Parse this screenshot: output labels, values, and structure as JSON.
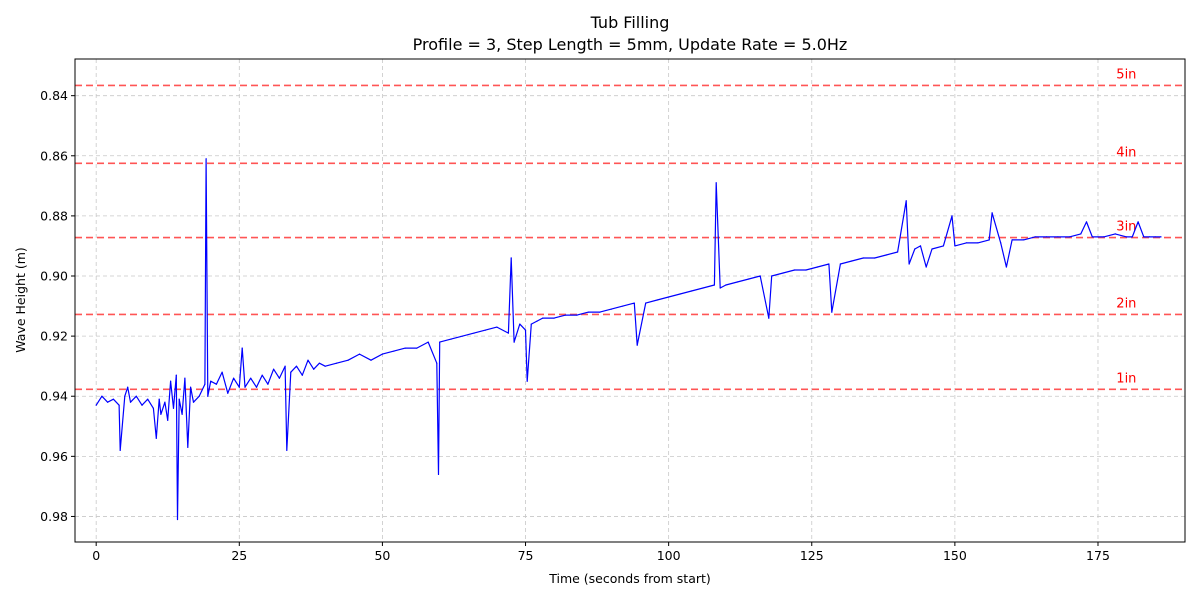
{
  "chart_data": {
    "type": "line",
    "title": "Tub Filling",
    "subtitle": "Profile = 3, Step Length = 5mm, Update Rate = 5.0Hz",
    "xlabel": "Time (seconds from start)",
    "ylabel": "Wave Height (m)",
    "xlim": [
      -3.7,
      190.2
    ],
    "ylim": [
      0.9885,
      0.8278
    ],
    "y_inverted": true,
    "xticks": [
      0,
      25,
      50,
      75,
      100,
      125,
      150,
      175
    ],
    "yticks": [
      0.84,
      0.86,
      0.88,
      0.9,
      0.92,
      0.94,
      0.96,
      0.98
    ],
    "ytick_labels": [
      "0.84",
      "0.86",
      "0.88",
      "0.90",
      "0.92",
      "0.94",
      "0.96",
      "0.98"
    ],
    "grid": true,
    "series_color": "#0000ff",
    "reference_lines": [
      {
        "label": "5in",
        "y": 0.8366,
        "color": "#ff5555"
      },
      {
        "label": "4in",
        "y": 0.8625,
        "color": "#ff5555"
      },
      {
        "label": "3in",
        "y": 0.8872,
        "color": "#ff5555"
      },
      {
        "label": "2in",
        "y": 0.9128,
        "color": "#ff5555"
      },
      {
        "label": "1in",
        "y": 0.9377,
        "color": "#ff5555"
      }
    ],
    "series": [
      {
        "x": [
          0,
          1,
          2,
          3,
          4,
          4.2,
          5,
          5.5,
          6,
          7,
          8,
          9,
          10,
          10.5,
          11,
          11.3,
          12,
          12.5,
          13,
          13.5,
          14,
          14.2,
          14.5,
          15,
          15.5,
          16,
          16.5,
          17,
          18,
          19,
          19.2,
          19.5,
          20,
          21,
          22,
          23,
          24,
          25,
          25.5,
          26,
          27,
          28,
          29,
          30,
          31,
          32,
          33,
          33.3,
          34,
          35,
          36,
          37,
          38,
          39,
          40,
          42,
          44,
          46,
          48,
          50,
          52,
          54,
          56,
          58,
          59.5,
          59.8,
          60,
          62,
          64,
          66,
          68,
          70,
          72,
          72.5,
          73,
          74,
          75,
          75.3,
          76,
          77,
          78,
          80,
          82,
          84,
          86,
          88,
          90,
          92,
          94,
          94.5,
          96,
          98,
          100,
          102,
          104,
          106,
          108,
          108.3,
          109,
          110,
          112,
          114,
          116,
          117.5,
          118,
          120,
          122,
          124,
          126,
          128,
          128.5,
          130,
          132,
          134,
          136,
          138,
          140,
          141.5,
          142,
          143,
          144,
          145,
          146,
          148,
          149.5,
          150,
          152,
          154,
          156,
          156.5,
          158,
          159,
          160,
          162,
          164,
          166,
          168,
          170,
          172,
          173,
          174,
          176,
          178,
          180,
          181,
          182,
          183,
          184,
          185,
          186
        ],
        "y": [
          0.943,
          0.94,
          0.942,
          0.941,
          0.943,
          0.958,
          0.94,
          0.937,
          0.942,
          0.94,
          0.943,
          0.941,
          0.944,
          0.954,
          0.941,
          0.946,
          0.942,
          0.948,
          0.935,
          0.944,
          0.933,
          0.981,
          0.941,
          0.946,
          0.934,
          0.957,
          0.937,
          0.942,
          0.94,
          0.936,
          0.861,
          0.94,
          0.935,
          0.936,
          0.932,
          0.939,
          0.934,
          0.937,
          0.924,
          0.937,
          0.934,
          0.937,
          0.933,
          0.936,
          0.931,
          0.934,
          0.93,
          0.958,
          0.932,
          0.93,
          0.933,
          0.928,
          0.931,
          0.929,
          0.93,
          0.929,
          0.928,
          0.926,
          0.928,
          0.926,
          0.925,
          0.924,
          0.924,
          0.922,
          0.929,
          0.966,
          0.922,
          0.921,
          0.92,
          0.919,
          0.918,
          0.917,
          0.919,
          0.894,
          0.922,
          0.916,
          0.918,
          0.935,
          0.916,
          0.915,
          0.914,
          0.914,
          0.913,
          0.913,
          0.912,
          0.912,
          0.911,
          0.91,
          0.909,
          0.923,
          0.909,
          0.908,
          0.907,
          0.906,
          0.905,
          0.904,
          0.903,
          0.869,
          0.904,
          0.903,
          0.902,
          0.901,
          0.9,
          0.914,
          0.9,
          0.899,
          0.898,
          0.898,
          0.897,
          0.896,
          0.912,
          0.896,
          0.895,
          0.894,
          0.894,
          0.893,
          0.892,
          0.875,
          0.896,
          0.891,
          0.89,
          0.897,
          0.891,
          0.89,
          0.88,
          0.89,
          0.889,
          0.889,
          0.888,
          0.879,
          0.889,
          0.897,
          0.888,
          0.888,
          0.887,
          0.887,
          0.887,
          0.887,
          0.886,
          0.882,
          0.887,
          0.887,
          0.886,
          0.887,
          0.887,
          0.882,
          0.887,
          0.887,
          0.887,
          0.887
        ]
      }
    ]
  }
}
